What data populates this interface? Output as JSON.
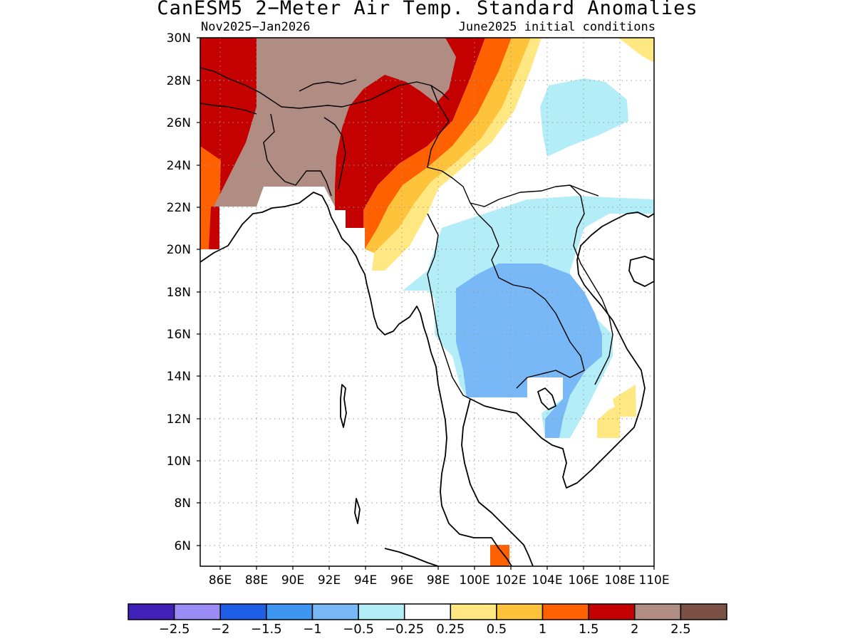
{
  "title": "CanESM5 2−Meter Air Temp. Standard Anomalies",
  "subtitle_left": "Nov2025−Jan2026",
  "subtitle_right": "June2025 initial conditions",
  "lat_labels": [
    "30N",
    "28N",
    "26N",
    "24N",
    "22N",
    "20N",
    "18N",
    "16N",
    "14N",
    "12N",
    "10N",
    "8N",
    "6N"
  ],
  "lon_labels": [
    "86E",
    "88E",
    "90E",
    "92E",
    "94E",
    "96E",
    "98E",
    "100E",
    "102E",
    "104E",
    "106E",
    "108E",
    "110E"
  ],
  "colorbar": {
    "colors": [
      "#3f20b8",
      "#9b8cf5",
      "#1f5fe6",
      "#3d96f0",
      "#78b8f7",
      "#b3eef8",
      "#ffffff",
      "#ffe882",
      "#ffc23b",
      "#ff6100",
      "#c40000",
      "#b08c82",
      "#7a5144"
    ],
    "labels": [
      "−2.5",
      "−2",
      "−1.5",
      "−1",
      "−0.5",
      "−0.25",
      "0.25",
      "0.5",
      "1",
      "1.5",
      "2",
      "2.5"
    ]
  }
}
